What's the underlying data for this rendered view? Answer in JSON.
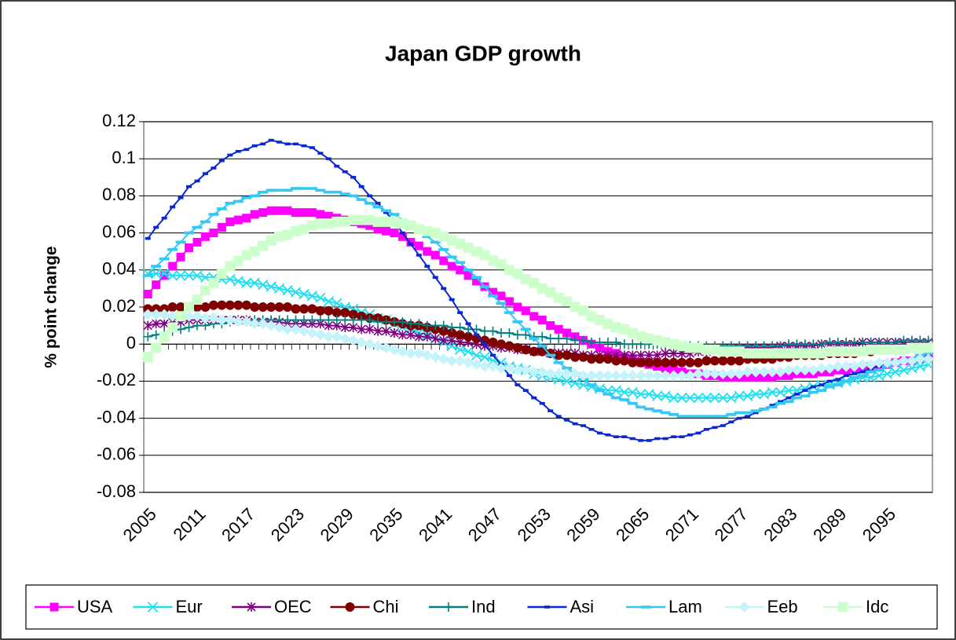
{
  "chart_data": {
    "type": "line",
    "title": "Japan GDP growth",
    "y_label": "% point change",
    "categories": [
      "2005",
      null,
      null,
      null,
      null,
      null,
      "2011",
      null,
      null,
      null,
      null,
      null,
      "2017",
      null,
      null,
      null,
      null,
      null,
      "2023",
      null,
      null,
      null,
      null,
      null,
      "2029",
      null,
      null,
      null,
      null,
      null,
      "2035",
      null,
      null,
      null,
      null,
      null,
      "2041",
      null,
      null,
      null,
      null,
      null,
      "2047",
      null,
      null,
      null,
      null,
      null,
      "2053",
      null,
      null,
      null,
      null,
      null,
      "2059",
      null,
      null,
      null,
      null,
      null,
      "2065",
      null,
      null,
      null,
      null,
      null,
      "2071",
      null,
      null,
      null,
      null,
      null,
      "2077",
      null,
      null,
      null,
      null,
      null,
      "2083",
      null,
      null,
      null,
      null,
      null,
      "2089",
      null,
      null,
      null,
      null,
      null,
      "2095",
      null,
      null,
      null,
      null,
      null
    ],
    "ylim": [
      -0.08,
      0.12
    ],
    "yticks": [
      -0.08,
      -0.06,
      -0.04,
      -0.02,
      0,
      0.02,
      0.04,
      0.06,
      0.08,
      0.1,
      0.12
    ],
    "grid": true,
    "legend": "bottom",
    "series": [
      {
        "name": "USA",
        "color": "#ff00ff",
        "marker": "square",
        "values": [
          0.027,
          0.032,
          0.037,
          0.042,
          0.047,
          0.052,
          0.055,
          0.058,
          0.06,
          0.063,
          0.066,
          0.067,
          0.068,
          0.07,
          0.071,
          0.072,
          0.072,
          0.072,
          0.071,
          0.071,
          0.071,
          0.07,
          0.069,
          0.068,
          0.067,
          0.066,
          0.065,
          0.064,
          0.062,
          0.061,
          0.06,
          0.058,
          0.055,
          0.053,
          0.05,
          0.048,
          0.045,
          0.042,
          0.04,
          0.037,
          0.034,
          0.031,
          0.028,
          0.026,
          0.023,
          0.02,
          0.018,
          0.015,
          0.013,
          0.01,
          0.008,
          0.006,
          0.004,
          0.002,
          0,
          -0.002,
          -0.004,
          -0.005,
          -0.007,
          -0.008,
          -0.01,
          -0.011,
          -0.012,
          -0.013,
          -0.014,
          -0.015,
          -0.016,
          -0.016,
          -0.017,
          -0.017,
          -0.018,
          -0.018,
          -0.018,
          -0.018,
          -0.018,
          -0.018,
          -0.018,
          -0.017,
          -0.017,
          -0.016,
          -0.016,
          -0.016,
          -0.015,
          -0.015,
          -0.014,
          -0.014,
          -0.013,
          -0.013,
          -0.012,
          -0.012,
          -0.011,
          -0.01,
          -0.009,
          -0.009,
          -0.008,
          -0.007
        ]
      },
      {
        "name": "Eur",
        "color": "#1ee0f0",
        "marker": "x",
        "values": [
          0.038,
          0.038,
          0.038,
          0.037,
          0.037,
          0.037,
          0.037,
          0.036,
          0.036,
          0.035,
          0.035,
          0.034,
          0.033,
          0.033,
          0.032,
          0.031,
          0.03,
          0.029,
          0.028,
          0.027,
          0.026,
          0.025,
          0.023,
          0.022,
          0.02,
          0.019,
          0.017,
          0.016,
          0.014,
          0.013,
          0.011,
          0.009,
          0.008,
          0.006,
          0.005,
          0.003,
          0.001,
          -0.001,
          -0.003,
          -0.004,
          -0.006,
          -0.007,
          -0.009,
          -0.01,
          -0.012,
          -0.013,
          -0.014,
          -0.016,
          -0.017,
          -0.018,
          -0.019,
          -0.02,
          -0.021,
          -0.022,
          -0.023,
          -0.024,
          -0.025,
          -0.025,
          -0.026,
          -0.026,
          -0.027,
          -0.027,
          -0.028,
          -0.028,
          -0.029,
          -0.029,
          -0.029,
          -0.029,
          -0.029,
          -0.029,
          -0.029,
          -0.029,
          -0.028,
          -0.028,
          -0.027,
          -0.027,
          -0.026,
          -0.026,
          -0.025,
          -0.025,
          -0.024,
          -0.023,
          -0.022,
          -0.022,
          -0.021,
          -0.02,
          -0.019,
          -0.018,
          -0.018,
          -0.017,
          -0.016,
          -0.015,
          -0.014,
          -0.013,
          -0.012,
          -0.011
        ]
      },
      {
        "name": "OEC",
        "color": "#800080",
        "marker": "asterisk",
        "values": [
          0.01,
          0.011,
          0.011,
          0.012,
          0.012,
          0.013,
          0.013,
          0.013,
          0.013,
          0.013,
          0.013,
          0.013,
          0.013,
          0.012,
          0.012,
          0.012,
          0.012,
          0.011,
          0.011,
          0.011,
          0.011,
          0.011,
          0.01,
          0.01,
          0.009,
          0.009,
          0.008,
          0.008,
          0.007,
          0.007,
          0.006,
          0.005,
          0.005,
          0.004,
          0.004,
          0.003,
          0.002,
          0.002,
          0.001,
          0.001,
          0,
          -0.001,
          -0.001,
          -0.002,
          -0.002,
          -0.003,
          -0.003,
          -0.004,
          -0.004,
          -0.005,
          -0.005,
          -0.005,
          -0.005,
          -0.006,
          -0.006,
          -0.006,
          -0.006,
          -0.006,
          -0.006,
          -0.006,
          -0.006,
          -0.006,
          -0.006,
          -0.005,
          -0.005,
          -0.005,
          -0.005,
          -0.004,
          -0.004,
          -0.003,
          -0.003,
          -0.003,
          -0.002,
          -0.002,
          -0.002,
          -0.002,
          -0.002,
          -0.001,
          -0.001,
          -0.001,
          -0.001,
          -0.001,
          0,
          0,
          0,
          0,
          0,
          0.001,
          0.001,
          0.001,
          0.001,
          0.001,
          0.001,
          0.001,
          0.001,
          0.001
        ]
      },
      {
        "name": "Chi",
        "color": "#800000",
        "marker": "circle",
        "values": [
          0.019,
          0.019,
          0.019,
          0.02,
          0.02,
          0.02,
          0.02,
          0.02,
          0.021,
          0.021,
          0.021,
          0.021,
          0.021,
          0.02,
          0.02,
          0.02,
          0.02,
          0.02,
          0.019,
          0.019,
          0.019,
          0.018,
          0.018,
          0.017,
          0.017,
          0.016,
          0.015,
          0.014,
          0.014,
          0.013,
          0.012,
          0.011,
          0.01,
          0.01,
          0.009,
          0.008,
          0.007,
          0.006,
          0.005,
          0.004,
          0.003,
          0.002,
          0.001,
          0,
          -0.001,
          -0.002,
          -0.003,
          -0.004,
          -0.004,
          -0.005,
          -0.006,
          -0.006,
          -0.007,
          -0.007,
          -0.008,
          -0.008,
          -0.008,
          -0.009,
          -0.009,
          -0.01,
          -0.01,
          -0.01,
          -0.01,
          -0.01,
          -0.01,
          -0.01,
          -0.01,
          -0.01,
          -0.009,
          -0.009,
          -0.009,
          -0.009,
          -0.009,
          -0.008,
          -0.008,
          -0.008,
          -0.008,
          -0.007,
          -0.007,
          -0.006,
          -0.006,
          -0.006,
          -0.006,
          -0.005,
          -0.005,
          -0.005,
          -0.005,
          -0.004,
          -0.004,
          -0.003,
          -0.003,
          -0.003,
          -0.003,
          -0.002,
          -0.002,
          -0.002
        ]
      },
      {
        "name": "Ind",
        "color": "#008080",
        "marker": "plus",
        "values": [
          0.004,
          0.005,
          0.006,
          0.007,
          0.008,
          0.009,
          0.01,
          0.01,
          0.011,
          0.011,
          0.012,
          0.012,
          0.012,
          0.013,
          0.013,
          0.013,
          0.013,
          0.013,
          0.013,
          0.013,
          0.013,
          0.013,
          0.013,
          0.013,
          0.013,
          0.013,
          0.013,
          0.013,
          0.012,
          0.012,
          0.012,
          0.012,
          0.011,
          0.011,
          0.01,
          0.01,
          0.01,
          0.009,
          0.009,
          0.008,
          0.008,
          0.007,
          0.007,
          0.006,
          0.006,
          0.005,
          0.005,
          0.004,
          0.004,
          0.003,
          0.003,
          0.003,
          0.002,
          0.002,
          0.001,
          0.001,
          0.001,
          0.001,
          0,
          0,
          0,
          0,
          0,
          0,
          0,
          -0.001,
          -0.001,
          -0.001,
          -0.001,
          -0.001,
          -0.001,
          -0.001,
          -0.001,
          -0.001,
          -0.001,
          -0.001,
          -0.001,
          -0.001,
          0,
          0,
          0,
          0,
          0,
          0.001,
          0.001,
          0.001,
          0.001,
          0.001,
          0.001,
          0.001,
          0.001,
          0.001,
          0.002,
          0.002,
          0.002,
          0.002
        ]
      },
      {
        "name": "Asi",
        "color": "#0a28d2",
        "marker": "dash",
        "values": [
          0.057,
          0.063,
          0.068,
          0.074,
          0.079,
          0.085,
          0.088,
          0.092,
          0.095,
          0.099,
          0.102,
          0.104,
          0.105,
          0.107,
          0.108,
          0.11,
          0.109,
          0.108,
          0.108,
          0.107,
          0.106,
          0.103,
          0.1,
          0.096,
          0.093,
          0.09,
          0.085,
          0.08,
          0.076,
          0.071,
          0.066,
          0.06,
          0.054,
          0.048,
          0.042,
          0.036,
          0.03,
          0.024,
          0.017,
          0.011,
          0.005,
          0,
          -0.006,
          -0.011,
          -0.017,
          -0.022,
          -0.025,
          -0.029,
          -0.032,
          -0.036,
          -0.039,
          -0.041,
          -0.043,
          -0.044,
          -0.046,
          -0.048,
          -0.049,
          -0.05,
          -0.05,
          -0.051,
          -0.052,
          -0.052,
          -0.051,
          -0.051,
          -0.05,
          -0.05,
          -0.049,
          -0.048,
          -0.046,
          -0.045,
          -0.044,
          -0.042,
          -0.04,
          -0.039,
          -0.037,
          -0.035,
          -0.033,
          -0.031,
          -0.029,
          -0.027,
          -0.025,
          -0.023,
          -0.022,
          -0.02,
          -0.019,
          -0.017,
          -0.016,
          -0.015,
          -0.013,
          -0.012,
          -0.011,
          -0.01,
          -0.009,
          -0.008,
          -0.007,
          -0.006
        ]
      },
      {
        "name": "Lam",
        "color": "#33c8f5",
        "marker": "longdash",
        "values": [
          0.037,
          0.042,
          0.046,
          0.051,
          0.055,
          0.06,
          0.063,
          0.066,
          0.07,
          0.073,
          0.076,
          0.077,
          0.079,
          0.08,
          0.082,
          0.083,
          0.083,
          0.083,
          0.084,
          0.084,
          0.084,
          0.083,
          0.082,
          0.082,
          0.081,
          0.08,
          0.078,
          0.076,
          0.074,
          0.072,
          0.07,
          0.067,
          0.064,
          0.061,
          0.058,
          0.055,
          0.051,
          0.047,
          0.044,
          0.04,
          0.036,
          0.031,
          0.026,
          0.022,
          0.017,
          0.012,
          0.008,
          0.003,
          -0.001,
          -0.006,
          -0.01,
          -0.013,
          -0.016,
          -0.019,
          -0.022,
          -0.025,
          -0.027,
          -0.029,
          -0.03,
          -0.032,
          -0.034,
          -0.035,
          -0.036,
          -0.037,
          -0.038,
          -0.039,
          -0.039,
          -0.039,
          -0.039,
          -0.039,
          -0.039,
          -0.038,
          -0.037,
          -0.037,
          -0.036,
          -0.035,
          -0.034,
          -0.032,
          -0.031,
          -0.029,
          -0.028,
          -0.026,
          -0.025,
          -0.023,
          -0.022,
          -0.02,
          -0.018,
          -0.017,
          -0.015,
          -0.014,
          -0.012,
          -0.011,
          -0.009,
          -0.008,
          -0.006,
          -0.005
        ]
      },
      {
        "name": "Eeb",
        "color": "#c4f4fa",
        "marker": "diamond",
        "values": [
          0.016,
          0.016,
          0.016,
          0.015,
          0.015,
          0.015,
          0.015,
          0.014,
          0.014,
          0.013,
          0.013,
          0.012,
          0.012,
          0.011,
          0.011,
          0.01,
          0.009,
          0.008,
          0.008,
          0.007,
          0.006,
          0.005,
          0.004,
          0.004,
          0.003,
          0.002,
          0.001,
          0,
          -0.001,
          -0.002,
          -0.003,
          -0.004,
          -0.005,
          -0.005,
          -0.006,
          -0.007,
          -0.008,
          -0.009,
          -0.009,
          -0.01,
          -0.011,
          -0.012,
          -0.012,
          -0.013,
          -0.013,
          -0.014,
          -0.014,
          -0.015,
          -0.015,
          -0.016,
          -0.016,
          -0.016,
          -0.016,
          -0.017,
          -0.017,
          -0.017,
          -0.017,
          -0.017,
          -0.017,
          -0.017,
          -0.017,
          -0.017,
          -0.017,
          -0.017,
          -0.017,
          -0.017,
          -0.017,
          -0.016,
          -0.016,
          -0.016,
          -0.016,
          -0.016,
          -0.016,
          -0.015,
          -0.015,
          -0.015,
          -0.015,
          -0.015,
          -0.014,
          -0.014,
          -0.014,
          -0.014,
          -0.013,
          -0.013,
          -0.012,
          -0.012,
          -0.012,
          -0.011,
          -0.011,
          -0.01,
          -0.01,
          -0.01,
          -0.009,
          -0.009,
          -0.008,
          -0.008
        ]
      },
      {
        "name": "Idc",
        "color": "#ccffcc",
        "marker": "bigsquare",
        "values": [
          -0.007,
          -0.002,
          0.004,
          0.009,
          0.015,
          0.02,
          0.024,
          0.029,
          0.033,
          0.038,
          0.042,
          0.045,
          0.048,
          0.05,
          0.053,
          0.056,
          0.058,
          0.059,
          0.061,
          0.062,
          0.064,
          0.065,
          0.065,
          0.066,
          0.066,
          0.067,
          0.067,
          0.067,
          0.066,
          0.066,
          0.066,
          0.065,
          0.064,
          0.062,
          0.061,
          0.06,
          0.058,
          0.056,
          0.054,
          0.052,
          0.05,
          0.048,
          0.045,
          0.043,
          0.04,
          0.038,
          0.035,
          0.033,
          0.03,
          0.028,
          0.025,
          0.023,
          0.02,
          0.018,
          0.015,
          0.013,
          0.011,
          0.009,
          0.008,
          0.006,
          0.004,
          0.003,
          0.002,
          0.001,
          0,
          -0.001,
          -0.002,
          -0.002,
          -0.003,
          -0.003,
          -0.004,
          -0.004,
          -0.004,
          -0.005,
          -0.005,
          -0.005,
          -0.005,
          -0.005,
          -0.005,
          -0.005,
          -0.005,
          -0.005,
          -0.005,
          -0.004,
          -0.004,
          -0.004,
          -0.004,
          -0.004,
          -0.003,
          -0.003,
          -0.003,
          -0.003,
          -0.003,
          -0.002,
          -0.002,
          -0.002
        ]
      }
    ]
  }
}
